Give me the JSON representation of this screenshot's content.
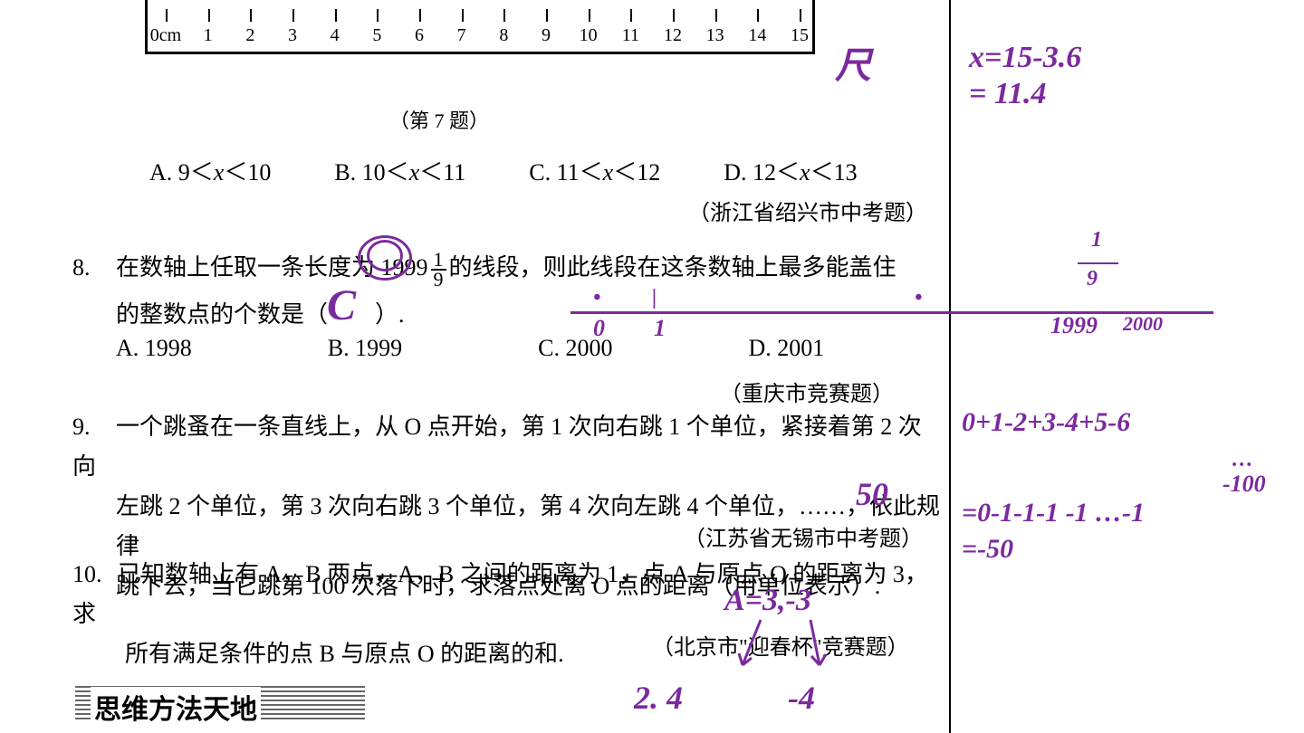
{
  "ruler": {
    "labels": [
      "0cm",
      "1",
      "2",
      "3",
      "4",
      "5",
      "6",
      "7",
      "8",
      "9",
      "10",
      "11",
      "12",
      "13",
      "14",
      "15"
    ],
    "tick_count": 16
  },
  "fig_caption": "（第 7 题）",
  "q7": {
    "options": {
      "A": "A. 9＜x＜10",
      "B": "B. 10＜x＜11",
      "C": "C. 11＜x＜12",
      "D": "D. 12＜x＜13"
    },
    "source": "（浙江省绍兴市中考题）"
  },
  "q8": {
    "number": "8.",
    "text_before": "在数轴上任取一条长度为 1999",
    "frac_top": "1",
    "frac_bot": "9",
    "text_after": "的线段，则此线段在这条数轴上最多能盖住",
    "line2": "的整数点的个数是（　　）.",
    "options": {
      "A": "A. 1998",
      "B": "B. 1999",
      "C": "C. 2000",
      "D": "D. 2001"
    },
    "source": "（重庆市竞赛题）"
  },
  "q9": {
    "number": "9.",
    "line1": "一个跳蚤在一条直线上，从 O 点开始，第 1 次向右跳 1 个单位，紧接着第 2 次向",
    "line2": "左跳 2 个单位，第 3 次向右跳 3 个单位，第 4 次向左跳 4 个单位，……，依此规律",
    "line3": "跳下去，当它跳第 100 次落下时，求落点处离 O 点的距离（用单位表示）.",
    "source": "（江苏省无锡市中考题）"
  },
  "q10": {
    "number": "10.",
    "line1": "已知数轴上有 A，B 两点，A，B 之间的距离为 1，点 A 与原点 O 的距离为 3，求",
    "line2": "所有满足条件的点 B 与原点 O 的距离的和.",
    "source": "（北京市\"迎春杯\"竞赛题）"
  },
  "section_header": "思维方法天地",
  "annotations": {
    "ruler_label": "尺",
    "calc1_l1": "x=15-3.6",
    "calc1_l2": "= 11.4",
    "q8_answer": "C",
    "numline_0": "0",
    "numline_1": "1",
    "numline_frac_top": "1",
    "numline_frac_bot": "9",
    "numline_1999": "1999",
    "numline_2000": "2000",
    "q9_answer": "50",
    "q9_calc_l1": "0+1-2+3-4+5-6",
    "q9_calc_dots": "…",
    "q9_calc_neg100": "-100",
    "q9_calc_l2": "=0-1-1-1 -1 …-1",
    "q9_calc_l3": "=-50",
    "q10_A": "A=3,-3",
    "q10_vals1": "2. 4",
    "q10_vals2": "-4"
  },
  "colors": {
    "handwriting": "#7b2a9e",
    "text": "#000000",
    "background": "#ffffff"
  }
}
